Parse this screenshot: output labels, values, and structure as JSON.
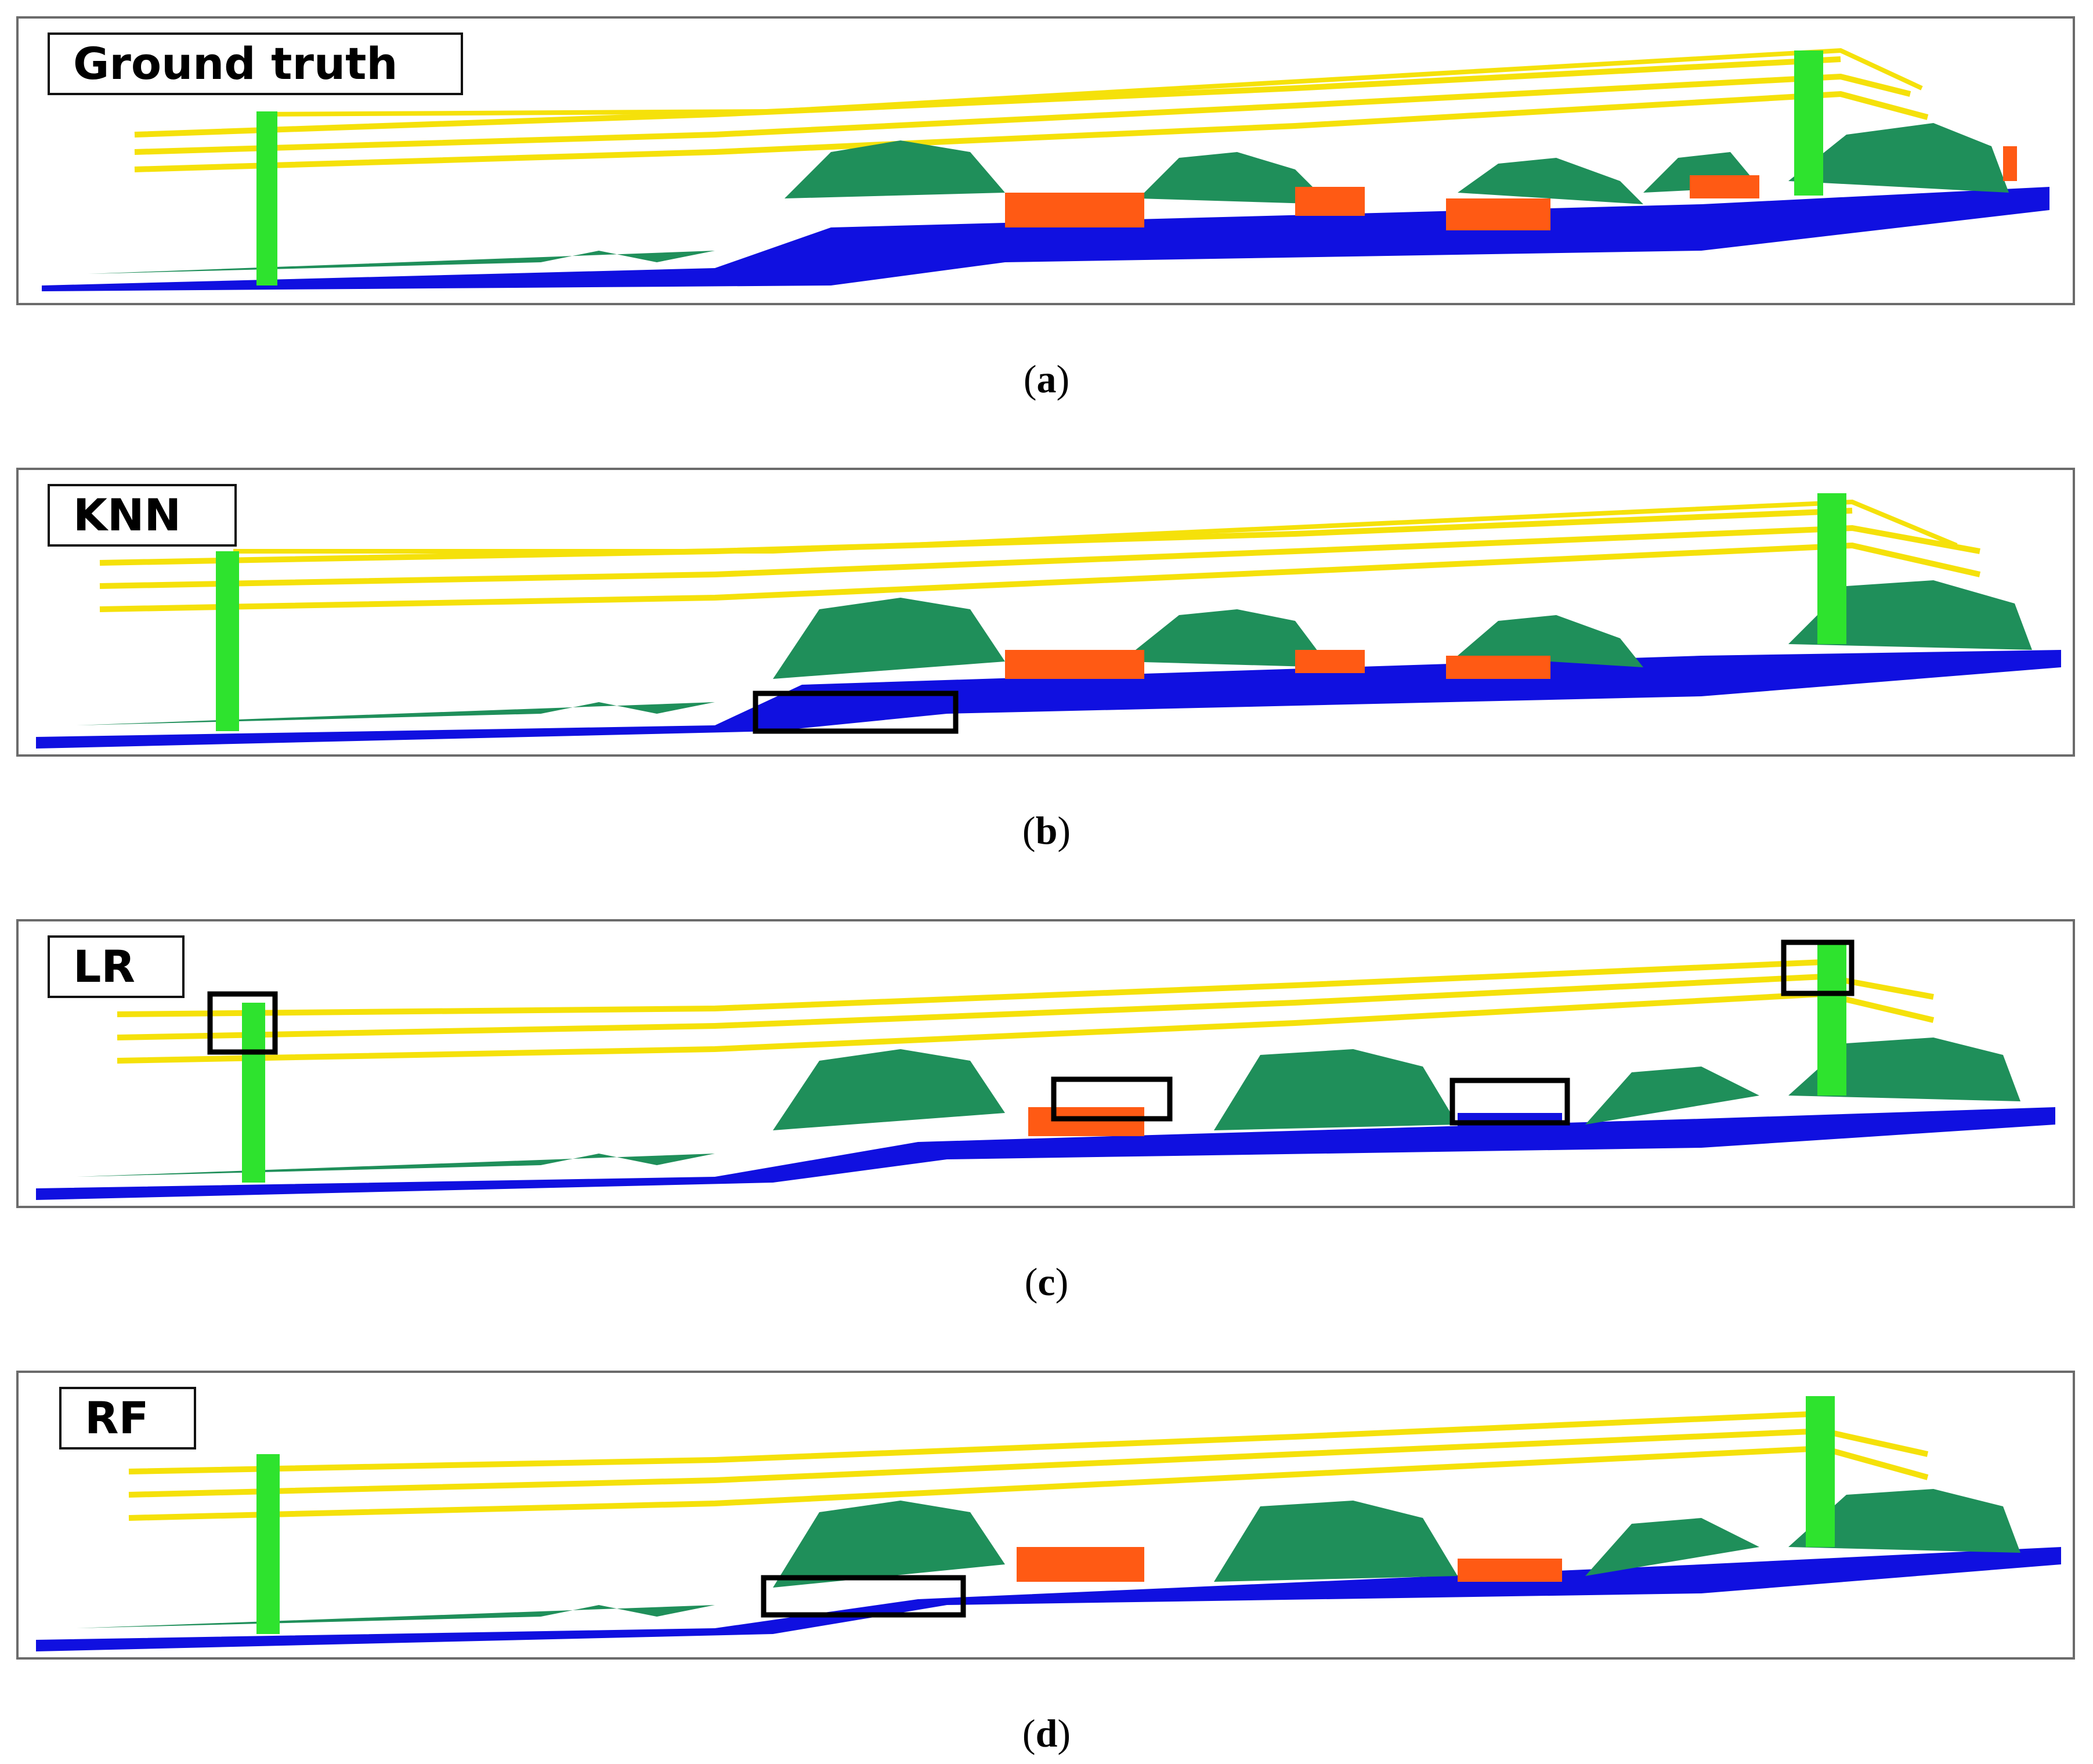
{
  "panels": [
    {
      "label": "Ground truth",
      "caption_letter": "a"
    },
    {
      "label": "KNN",
      "caption_letter": "b"
    },
    {
      "label": "LR",
      "caption_letter": "c"
    },
    {
      "label": "RF",
      "caption_letter": "d"
    }
  ],
  "colors": {
    "ground": "#1010e0",
    "vegetation": "#1f8f5a",
    "building": "#ff5a14",
    "power_line": "#f5e10a",
    "pylon": "#2ee32e",
    "highlight_box": "#000000",
    "frame": "#6b6b6b"
  }
}
